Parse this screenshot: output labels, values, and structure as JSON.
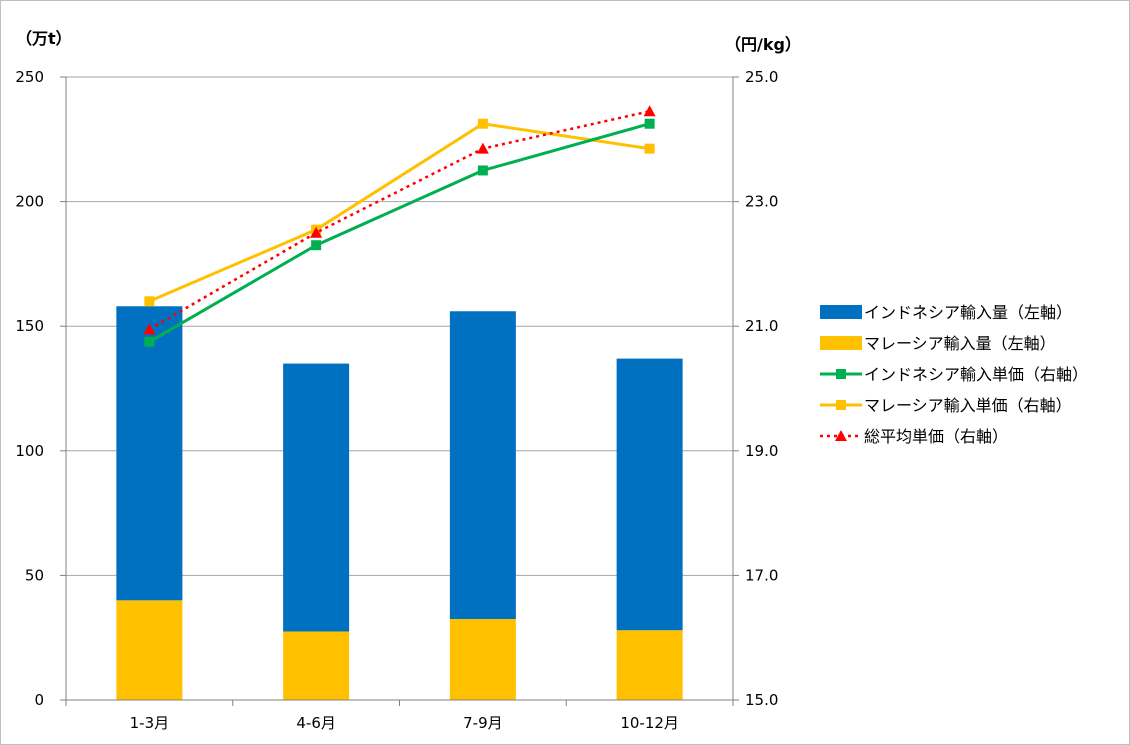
{
  "chart_data": {
    "type": "bar",
    "categories": [
      "1-3月",
      "4-6月",
      "7-9月",
      "10-12月"
    ],
    "left_axis": {
      "unit": "（万t）",
      "range": [
        0,
        250
      ],
      "ticks": [
        "0",
        "50",
        "100",
        "150",
        "200",
        "250"
      ],
      "tick_values": [
        0,
        50,
        100,
        150,
        200,
        250
      ]
    },
    "right_axis": {
      "unit": "（円/kg）",
      "range": [
        15.0,
        25.0
      ],
      "ticks": [
        "15.0",
        "17.0",
        "19.0",
        "21.0",
        "23.0",
        "25.0"
      ],
      "tick_values": [
        15,
        17,
        19,
        21,
        23,
        25
      ]
    },
    "grid": true,
    "legend_position": "right",
    "bar_series": [
      {
        "name": "マレーシア輸入量（左軸）",
        "color": "#FFC000",
        "values": [
          40,
          27.5,
          32.5,
          28
        ]
      },
      {
        "name": "インドネシア輸入量（左軸）",
        "color": "#0070C0",
        "values": [
          118,
          107.5,
          123.5,
          109
        ]
      }
    ],
    "line_series": [
      {
        "name": "インドネシア輸入単価（右軸）",
        "color": "#00B050",
        "marker": "square",
        "style": "solid",
        "values": [
          20.75,
          22.3,
          23.5,
          24.25
        ]
      },
      {
        "name": "マレーシア輸入単価（右軸）",
        "color": "#FFC000",
        "marker": "square",
        "style": "solid",
        "values": [
          21.4,
          22.55,
          24.25,
          23.85
        ]
      },
      {
        "name": "総平均単価（右軸）",
        "color": "#FF0000",
        "marker": "triangle",
        "style": "dotted",
        "values": [
          20.95,
          22.5,
          23.85,
          24.45
        ]
      }
    ],
    "legend_order": [
      "インドネシア輸入量（左軸）",
      "マレーシア輸入量（左軸）",
      "インドネシア輸入単価（右軸）",
      "マレーシア輸入単価（右軸）",
      "総平均単価（右軸）"
    ]
  }
}
